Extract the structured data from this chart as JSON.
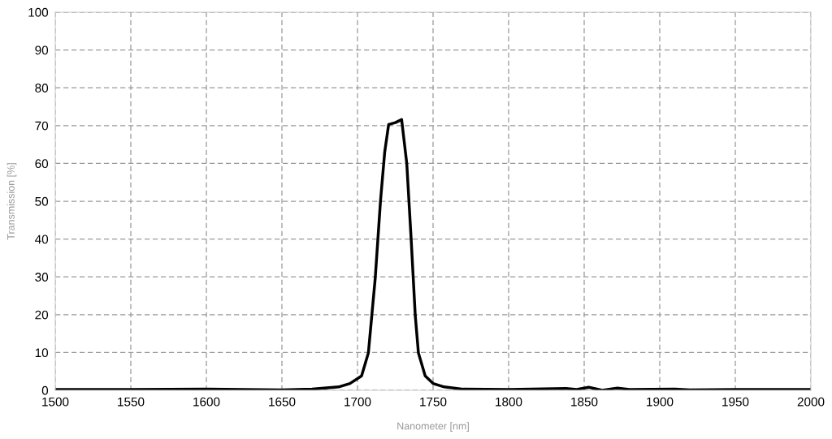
{
  "chart_data": {
    "type": "line",
    "xlabel": "Nanometer [nm]",
    "ylabel": "Transmission [%]",
    "xlim": [
      1500,
      2000
    ],
    "xticks": [
      1500,
      1550,
      1600,
      1650,
      1700,
      1750,
      1800,
      1850,
      1900,
      1950,
      2000
    ],
    "ylim": [
      0,
      100
    ],
    "yticks": [
      0,
      10,
      20,
      30,
      40,
      50,
      60,
      70,
      80,
      90,
      100
    ],
    "grid": true,
    "line_style": "solid",
    "marker": "none",
    "series": [
      {
        "color": "#000000",
        "x": [
          1500,
          1550,
          1600,
          1650,
          1670,
          1687.5,
          1695,
          1702.7,
          1707.2,
          1711.7,
          1715.2,
          1718,
          1720.6,
          1725,
          1729.2,
          1732.6,
          1735.5,
          1738.2,
          1740.3,
          1744.8,
          1750,
          1757.4,
          1770,
          1800,
          1838,
          1845,
          1853,
          1862,
          1872,
          1880,
          1910,
          1920,
          1950,
          2000
        ],
        "values": [
          0.2,
          0.2,
          0.3,
          0.1,
          0.3,
          0.9,
          1.8,
          3.8,
          9.9,
          29.5,
          50,
          63,
          70.3,
          70.8,
          71.6,
          60,
          40,
          19.9,
          9.9,
          3.8,
          1.8,
          0.9,
          0.3,
          0.2,
          0.5,
          0.2,
          0.8,
          0,
          0.6,
          0.2,
          0.3,
          0.1,
          0.2,
          0.2
        ]
      }
    ]
  }
}
